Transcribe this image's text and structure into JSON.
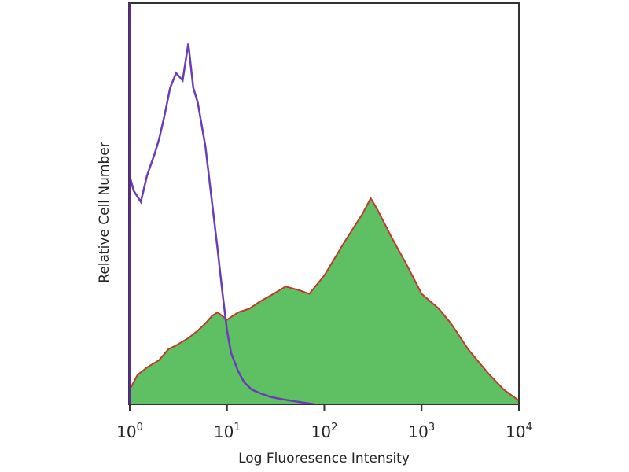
{
  "chart_data": {
    "type": "area",
    "xlabel": "Log Fluoresence Intensity",
    "ylabel": "Relative Cell Number",
    "x_scale": "log",
    "xlim": [
      1,
      10000
    ],
    "ylim": [
      0,
      1
    ],
    "grid": false,
    "x_ticks": [
      {
        "base": "10",
        "exp": "0",
        "value": 1
      },
      {
        "base": "10",
        "exp": "1",
        "value": 10
      },
      {
        "base": "10",
        "exp": "2",
        "value": 100
      },
      {
        "base": "10",
        "exp": "3",
        "value": 1000
      },
      {
        "base": "10",
        "exp": "4",
        "value": 10000
      }
    ],
    "series": [
      {
        "color": "#5fbf63",
        "outline_color": "#c0392b",
        "fill": true,
        "x": [
          1,
          1.2,
          1.5,
          2,
          2.5,
          3,
          4,
          5,
          6,
          7,
          8,
          10,
          13,
          17,
          22,
          30,
          40,
          55,
          70,
          100,
          130,
          160,
          200,
          250,
          300,
          350,
          400,
          500,
          700,
          1000,
          1500,
          2000,
          3000,
          5000,
          7000,
          10000
        ],
        "values": [
          0.04,
          0.08,
          0.1,
          0.12,
          0.15,
          0.16,
          0.18,
          0.2,
          0.22,
          0.24,
          0.25,
          0.23,
          0.25,
          0.26,
          0.28,
          0.3,
          0.32,
          0.31,
          0.3,
          0.35,
          0.4,
          0.44,
          0.48,
          0.52,
          0.56,
          0.53,
          0.5,
          0.45,
          0.38,
          0.3,
          0.26,
          0.22,
          0.15,
          0.08,
          0.04,
          0.01
        ]
      },
      {
        "color": "#6a3db8",
        "fill": false,
        "x": [
          1,
          1.1,
          1.3,
          1.5,
          1.8,
          2,
          2.3,
          2.6,
          3,
          3.5,
          4,
          4.5,
          5,
          6,
          7,
          8,
          9,
          10,
          11,
          13,
          15,
          18,
          22,
          28,
          35,
          45,
          60,
          80
        ],
        "values": [
          0.62,
          0.58,
          0.55,
          0.62,
          0.68,
          0.72,
          0.79,
          0.86,
          0.9,
          0.88,
          0.98,
          0.86,
          0.82,
          0.7,
          0.55,
          0.42,
          0.3,
          0.2,
          0.14,
          0.09,
          0.06,
          0.04,
          0.03,
          0.02,
          0.015,
          0.01,
          0.005,
          0.0
        ]
      }
    ]
  }
}
